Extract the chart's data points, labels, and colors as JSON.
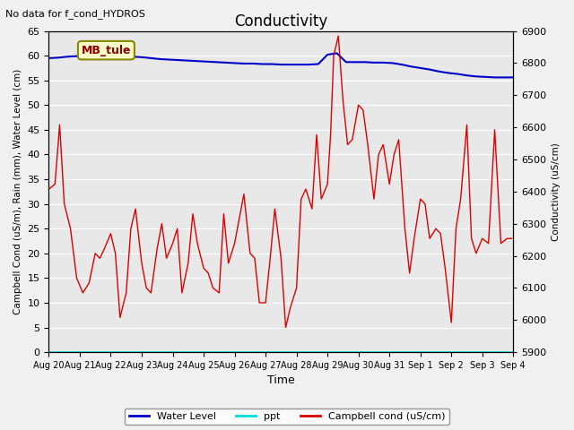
{
  "title": "Conductivity",
  "top_left_note": "No data for f_cond_HYDROS",
  "xlabel": "Time",
  "ylabel_left": "Campbell Cond (uS/m), Rain (mm), Water Level (cm)",
  "ylabel_right": "Conductivity (uS/cm)",
  "ylim_left": [
    0,
    65
  ],
  "ylim_right": [
    5900,
    6900
  ],
  "fig_facecolor": "#f0f0f0",
  "plot_bg_color": "#e8e8e8",
  "box_label": "MB_tule",
  "box_facecolor": "#ffffcc",
  "box_edgecolor": "#888800",
  "xtick_labels": [
    "Aug 20",
    "Aug 21",
    "Aug 22",
    "Aug 23",
    "Aug 24",
    "Aug 25",
    "Aug 26",
    "Aug 27",
    "Aug 28",
    "Aug 29",
    "Aug 30",
    "Aug 31",
    "Sep 1",
    "Sep 2",
    "Sep 3",
    "Sep 4"
  ],
  "water_level_color": "#0000cc",
  "ppt_color": "#00dddd",
  "campbell_color": "#dd0000",
  "water_level_data_x": [
    0,
    0.3,
    0.6,
    0.9,
    1.2,
    1.5,
    1.8,
    2.1,
    2.4,
    2.7,
    3.0,
    3.3,
    3.6,
    3.9,
    4.2,
    4.5,
    4.8,
    5.1,
    5.4,
    5.7,
    6.0,
    6.3,
    6.6,
    6.9,
    7.2,
    7.5,
    7.8,
    8.1,
    8.4,
    8.7,
    9.0,
    9.3,
    9.6,
    9.9,
    10.2,
    10.5,
    10.8,
    11.1,
    11.4,
    11.7,
    12.0,
    12.3,
    12.6,
    12.9,
    13.2,
    13.5,
    13.8,
    14.1,
    14.4,
    14.7,
    15.0
  ],
  "water_level_data_y": [
    59.5,
    59.6,
    59.8,
    59.9,
    60.0,
    60.1,
    60.1,
    60.0,
    59.9,
    59.8,
    59.7,
    59.5,
    59.3,
    59.2,
    59.1,
    59.0,
    58.9,
    58.8,
    58.7,
    58.6,
    58.5,
    58.4,
    58.4,
    58.3,
    58.3,
    58.2,
    58.2,
    58.2,
    58.2,
    58.3,
    60.2,
    60.5,
    58.7,
    58.7,
    58.7,
    58.6,
    58.6,
    58.5,
    58.2,
    57.8,
    57.5,
    57.2,
    56.8,
    56.5,
    56.3,
    56.0,
    55.8,
    55.7,
    55.6,
    55.6,
    55.6
  ],
  "campbell_data_x": [
    0.0,
    0.2,
    0.35,
    0.5,
    0.7,
    0.9,
    1.1,
    1.3,
    1.5,
    1.65,
    1.8,
    2.0,
    2.15,
    2.3,
    2.5,
    2.65,
    2.8,
    3.0,
    3.15,
    3.3,
    3.5,
    3.65,
    3.8,
    4.0,
    4.15,
    4.3,
    4.5,
    4.65,
    4.8,
    5.0,
    5.15,
    5.3,
    5.5,
    5.65,
    5.8,
    6.0,
    6.15,
    6.3,
    6.5,
    6.65,
    6.8,
    7.0,
    7.15,
    7.3,
    7.5,
    7.65,
    7.8,
    8.0,
    8.15,
    8.3,
    8.5,
    8.65,
    8.8,
    9.0,
    9.1,
    9.2,
    9.35,
    9.5,
    9.65,
    9.8,
    10.0,
    10.15,
    10.3,
    10.5,
    10.65,
    10.8,
    11.0,
    11.15,
    11.3,
    11.5,
    11.65,
    11.8,
    12.0,
    12.15,
    12.3,
    12.5,
    12.65,
    12.8,
    13.0,
    13.15,
    13.3,
    13.5,
    13.65,
    13.8,
    14.0,
    14.2,
    14.4,
    14.6,
    14.8,
    14.95
  ],
  "campbell_data_y": [
    33,
    34,
    46,
    30,
    25,
    15,
    12,
    14,
    20,
    19,
    21,
    24,
    20,
    7,
    12,
    25,
    29,
    18,
    13,
    12,
    21,
    26,
    19,
    22,
    25,
    12,
    18,
    28,
    22,
    17,
    16,
    13,
    12,
    28,
    18,
    22,
    27,
    32,
    20,
    19,
    10,
    10,
    19,
    29,
    19,
    5,
    9,
    13,
    31,
    33,
    29,
    44,
    31,
    34,
    44,
    60,
    64,
    51,
    42,
    43,
    50,
    49,
    42,
    31,
    40,
    42,
    34,
    40,
    43,
    25,
    16,
    23,
    31,
    30,
    23,
    25,
    24,
    17,
    6,
    25,
    31,
    46,
    23,
    20,
    23,
    22,
    45,
    22,
    23,
    23
  ]
}
